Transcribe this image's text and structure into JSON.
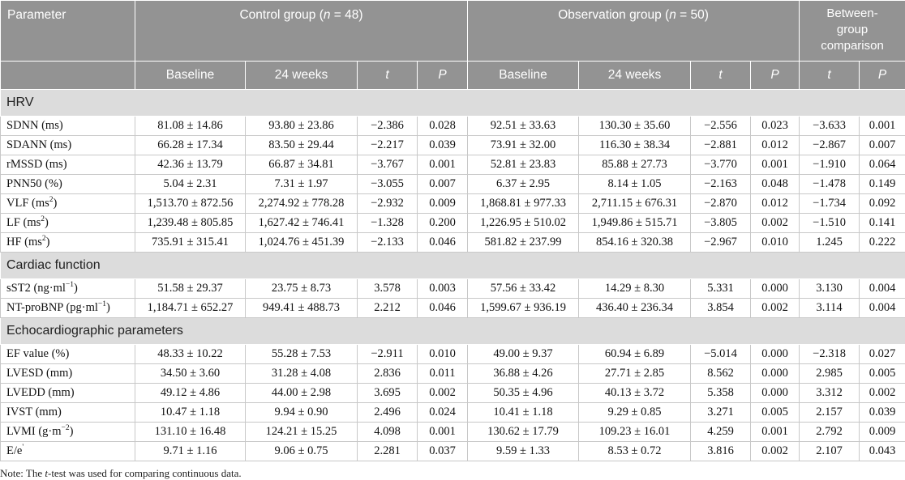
{
  "header": {
    "parameter": "Parameter",
    "control_group": {
      "prefix": "Control group (",
      "n": "n",
      "suffix": " = 48)"
    },
    "observation_group": {
      "prefix": "Observation group (",
      "n": "n",
      "suffix": " = 50)"
    },
    "comparison_lines": [
      "Between-",
      "group",
      "comparison"
    ],
    "subheaders": [
      "Baseline",
      "24 weeks",
      "t",
      "P",
      "Baseline",
      "24 weeks",
      "t",
      "P",
      "t",
      "P"
    ]
  },
  "sections": [
    {
      "title": "HRV",
      "rows": [
        {
          "name": "SDNN (ms)",
          "sup": "",
          "unit_after": "",
          "values": [
            "81.08 ± 14.86",
            "93.80 ± 23.86",
            "−2.386",
            "0.028",
            "92.51 ± 33.63",
            "130.30 ± 35.60",
            "−2.556",
            "0.023",
            "−3.633",
            "0.001"
          ]
        },
        {
          "name": "SDANN (ms)",
          "sup": "",
          "unit_after": "",
          "values": [
            "66.28 ± 17.34",
            "83.50 ± 29.44",
            "−2.217",
            "0.039",
            "73.91 ± 32.00",
            "116.30 ± 38.34",
            "−2.881",
            "0.012",
            "−2.867",
            "0.007"
          ]
        },
        {
          "name": "rMSSD (ms)",
          "sup": "",
          "unit_after": "",
          "values": [
            "42.36 ± 13.79",
            "66.87 ± 34.81",
            "−3.767",
            "0.001",
            "52.81 ± 23.83",
            "85.88 ± 27.73",
            "−3.770",
            "0.001",
            "−1.910",
            "0.064"
          ]
        },
        {
          "name": "PNN50 (%)",
          "sup": "",
          "unit_after": "",
          "values": [
            "5.04 ± 2.31",
            "7.31 ± 1.97",
            "−3.055",
            "0.007",
            "6.37 ± 2.95",
            "8.14 ± 1.05",
            "−2.163",
            "0.048",
            "−1.478",
            "0.149"
          ]
        },
        {
          "name": "VLF (ms",
          "sup": "2",
          "unit_after": ")",
          "values": [
            "1,513.70 ± 872.56",
            "2,274.92 ± 778.28",
            "−2.932",
            "0.009",
            "1,868.81 ± 977.33",
            "2,711.15 ± 676.31",
            "−2.870",
            "0.012",
            "−1.734",
            "0.092"
          ]
        },
        {
          "name": "LF (ms",
          "sup": "2",
          "unit_after": ")",
          "values": [
            "1,239.48 ± 805.85",
            "1,627.42 ± 746.41",
            "−1.328",
            "0.200",
            "1,226.95 ± 510.02",
            "1,949.86 ± 515.71",
            "−3.805",
            "0.002",
            "−1.510",
            "0.141"
          ]
        },
        {
          "name": "HF (ms",
          "sup": "2",
          "unit_after": ")",
          "values": [
            "735.91 ± 315.41",
            "1,024.76 ± 451.39",
            "−2.133",
            "0.046",
            "581.82 ± 237.99",
            "854.16 ± 320.38",
            "−2.967",
            "0.010",
            "1.245",
            "0.222"
          ]
        }
      ]
    },
    {
      "title": "Cardiac function",
      "rows": [
        {
          "name": "sST2 (ng·ml",
          "sup": "−1",
          "unit_after": ")",
          "values": [
            "51.58 ± 29.37",
            "23.75 ± 8.73",
            "3.578",
            "0.003",
            "57.56 ± 33.42",
            "14.29 ± 8.30",
            "5.331",
            "0.000",
            "3.130",
            "0.004"
          ]
        },
        {
          "name": "NT-proBNP (pg·ml",
          "sup": "−1",
          "unit_after": ")",
          "values": [
            "1,184.71 ± 652.27",
            "949.41 ± 488.73",
            "2.212",
            "0.046",
            "1,599.67 ± 936.19",
            "436.40 ± 236.34",
            "3.854",
            "0.002",
            "3.114",
            "0.004"
          ]
        }
      ]
    },
    {
      "title": "Echocardiographic parameters",
      "rows": [
        {
          "name": "EF value (%)",
          "sup": "",
          "unit_after": "",
          "values": [
            "48.33 ± 10.22",
            "55.28 ± 7.53",
            "−2.911",
            "0.010",
            "49.00 ± 9.37",
            "60.94 ± 6.89",
            "−5.014",
            "0.000",
            "−2.318",
            "0.027"
          ]
        },
        {
          "name": "LVESD (mm)",
          "sup": "",
          "unit_after": "",
          "values": [
            "34.50 ± 3.60",
            "31.28 ± 4.08",
            "2.836",
            "0.011",
            "36.88 ± 4.26",
            "27.71 ± 2.85",
            "8.562",
            "0.000",
            "2.985",
            "0.005"
          ]
        },
        {
          "name": "LVEDD (mm)",
          "sup": "",
          "unit_after": "",
          "values": [
            "49.12 ± 4.86",
            "44.00 ± 2.98",
            "3.695",
            "0.002",
            "50.35 ± 4.96",
            "40.13 ± 3.72",
            "5.358",
            "0.000",
            "3.312",
            "0.002"
          ]
        },
        {
          "name": "IVST (mm)",
          "sup": "",
          "unit_after": "",
          "values": [
            "10.47 ± 1.18",
            "9.94 ± 0.90",
            "2.496",
            "0.024",
            "10.41 ± 1.18",
            "9.29 ± 0.85",
            "3.271",
            "0.005",
            "2.157",
            "0.039"
          ]
        },
        {
          "name": "LVMI (g·m",
          "sup": "−2",
          "unit_after": ")",
          "values": [
            "131.10 ± 16.48",
            "124.21 ± 15.25",
            "4.098",
            "0.001",
            "130.62 ± 17.79",
            "109.23 ± 16.01",
            "4.259",
            "0.001",
            "2.792",
            "0.009"
          ]
        },
        {
          "name": "E/e",
          "sup": "'",
          "unit_after": "",
          "values": [
            "9.71 ± 1.16",
            "9.06 ± 0.75",
            "2.281",
            "0.037",
            "9.59 ± 1.33",
            "8.53 ± 0.72",
            "3.816",
            "0.002",
            "2.107",
            "0.043"
          ]
        }
      ]
    }
  ],
  "note": {
    "prefix": "Note: The ",
    "t": "t",
    "suffix": "-test was used for comparing continuous data."
  }
}
